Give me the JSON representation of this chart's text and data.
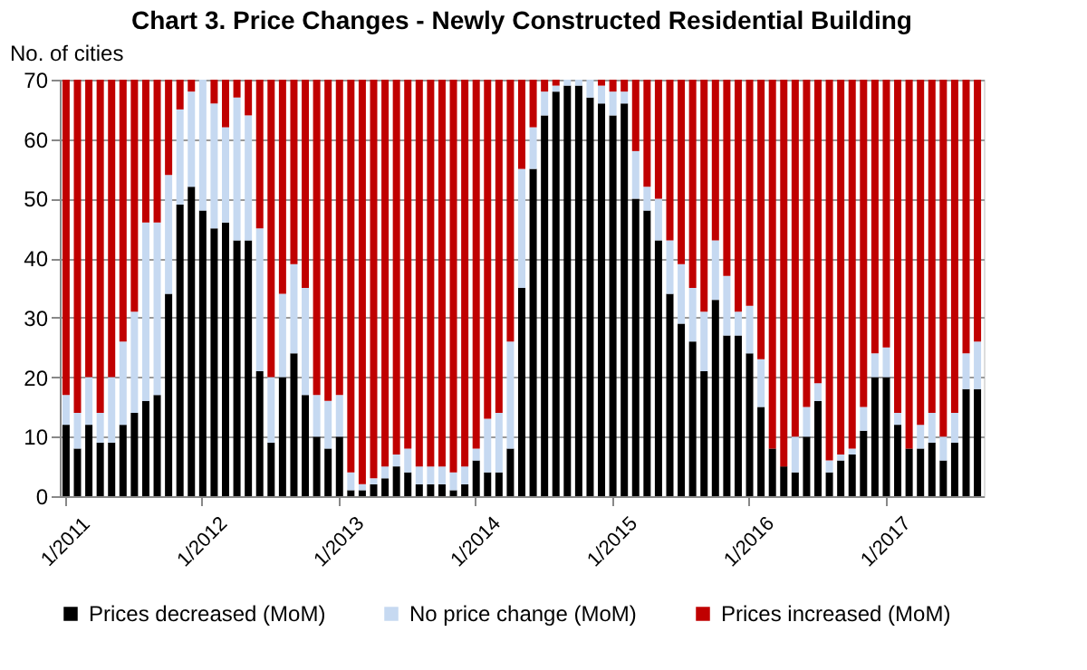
{
  "chart_data": {
    "type": "bar",
    "title": "Chart 3. Price Changes - Newly Constructed Residential Building",
    "ylabel": "No. of cities",
    "stacked": true,
    "legend": "bottom",
    "grid": "y",
    "ylim": [
      0,
      70
    ],
    "yticks": [
      0,
      10,
      20,
      30,
      40,
      50,
      60,
      70
    ],
    "categories": [
      "1/2011",
      null,
      null,
      null,
      null,
      null,
      null,
      null,
      null,
      null,
      null,
      null,
      "1/2012",
      null,
      null,
      null,
      null,
      null,
      null,
      null,
      null,
      null,
      null,
      null,
      "1/2013",
      null,
      null,
      null,
      null,
      null,
      null,
      null,
      null,
      null,
      null,
      null,
      "1/2014",
      null,
      null,
      null,
      null,
      null,
      null,
      null,
      null,
      null,
      null,
      null,
      "1/2015",
      null,
      null,
      null,
      null,
      null,
      null,
      null,
      null,
      null,
      null,
      null,
      "1/2016",
      null,
      null,
      null,
      null,
      null,
      null,
      null,
      null,
      null,
      null,
      null,
      "1/2017",
      null,
      null,
      null,
      null,
      null,
      null,
      null,
      null
    ],
    "series": [
      {
        "name": "Prices decreased (MoM)",
        "color": "#000000",
        "values": [
          12,
          8,
          12,
          9,
          9,
          12,
          14,
          16,
          17,
          34,
          49,
          52,
          48,
          45,
          46,
          43,
          43,
          21,
          9,
          20,
          24,
          17,
          10,
          8,
          10,
          1,
          1,
          2,
          3,
          5,
          4,
          2,
          2,
          2,
          1,
          2,
          6,
          4,
          4,
          8,
          35,
          55,
          64,
          68,
          69,
          69,
          67,
          66,
          64,
          66,
          50,
          48,
          43,
          34,
          29,
          26,
          21,
          33,
          27,
          27,
          24,
          15,
          8,
          5,
          4,
          10,
          16,
          4,
          6,
          7,
          11,
          20,
          20,
          12,
          8,
          8,
          9,
          6,
          9,
          18,
          18
        ]
      },
      {
        "name": "No price change (MoM)",
        "color": "#c6d9f1",
        "values": [
          5,
          6,
          8,
          5,
          11,
          14,
          17,
          30,
          29,
          20,
          16,
          16,
          22,
          21,
          16,
          24,
          21,
          24,
          11,
          14,
          15,
          18,
          7,
          8,
          7,
          3,
          1,
          1,
          2,
          2,
          4,
          3,
          3,
          3,
          3,
          3,
          2,
          9,
          10,
          18,
          20,
          7,
          4,
          1,
          1,
          1,
          3,
          3,
          4,
          2,
          8,
          4,
          7,
          9,
          10,
          9,
          10,
          10,
          10,
          4,
          8,
          8,
          0,
          0,
          6,
          5,
          3,
          2,
          1,
          1,
          4,
          4,
          5,
          2,
          0,
          4,
          5,
          4,
          5,
          6,
          8
        ]
      },
      {
        "name": "Prices increased (MoM)",
        "color": "#c00000",
        "values": [
          53,
          56,
          50,
          56,
          50,
          44,
          39,
          24,
          24,
          16,
          5,
          2,
          0,
          4,
          8,
          3,
          6,
          25,
          50,
          36,
          31,
          35,
          53,
          54,
          53,
          66,
          68,
          67,
          65,
          63,
          62,
          65,
          65,
          65,
          66,
          65,
          62,
          57,
          56,
          44,
          15,
          8,
          2,
          1,
          0,
          0,
          0,
          1,
          2,
          2,
          12,
          18,
          20,
          27,
          31,
          35,
          39,
          27,
          33,
          39,
          38,
          47,
          62,
          65,
          60,
          55,
          51,
          64,
          63,
          62,
          55,
          46,
          45,
          56,
          62,
          58,
          56,
          60,
          56,
          46,
          44
        ]
      }
    ]
  }
}
